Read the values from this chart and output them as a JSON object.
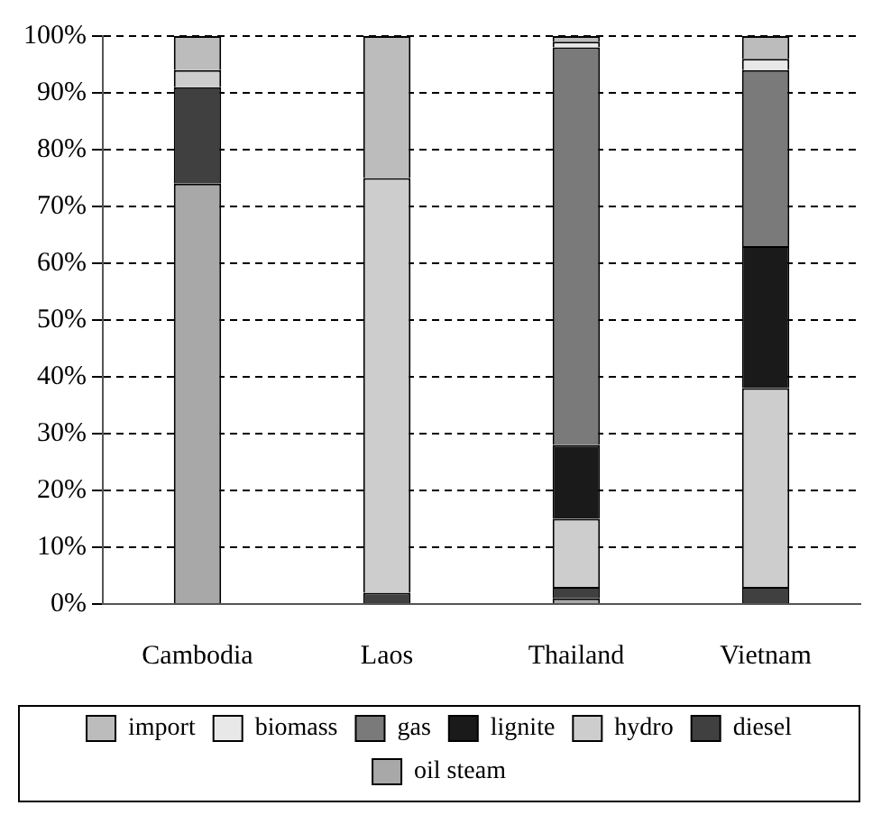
{
  "chart_data": {
    "type": "bar",
    "stacked": true,
    "categories": [
      "Cambodia",
      "Laos",
      "Thailand",
      "Vietnam"
    ],
    "series": [
      {
        "name": "oil steam",
        "color": "#a8a8a8",
        "values": [
          74,
          0,
          1,
          0
        ]
      },
      {
        "name": "diesel",
        "color": "#404040",
        "values": [
          17,
          2,
          2,
          3
        ]
      },
      {
        "name": "hydro",
        "color": "#cdcdcd",
        "values": [
          3,
          73,
          12,
          35
        ]
      },
      {
        "name": "lignite",
        "color": "#1a1a1a",
        "values": [
          0,
          0,
          13,
          25
        ]
      },
      {
        "name": "gas",
        "color": "#7a7a7a",
        "values": [
          0,
          0,
          70,
          31
        ]
      },
      {
        "name": "biomass",
        "color": "#e8e8e8",
        "values": [
          0,
          0,
          1,
          2
        ]
      },
      {
        "name": "import",
        "color": "#bcbcbc",
        "values": [
          6,
          25,
          1,
          4
        ]
      }
    ],
    "ylim": [
      0,
      100
    ],
    "yticks": [
      {
        "value": 0,
        "label": "0%"
      },
      {
        "value": 10,
        "label": "10%"
      },
      {
        "value": 20,
        "label": "20%"
      },
      {
        "value": 30,
        "label": "30%"
      },
      {
        "value": 40,
        "label": "40%"
      },
      {
        "value": 50,
        "label": "50%"
      },
      {
        "value": 60,
        "label": "60%"
      },
      {
        "value": 70,
        "label": "70%"
      },
      {
        "value": 80,
        "label": "80%"
      },
      {
        "value": 90,
        "label": "90%"
      },
      {
        "value": 100,
        "label": "100%"
      }
    ],
    "grid": "y",
    "legend": "bottom"
  }
}
